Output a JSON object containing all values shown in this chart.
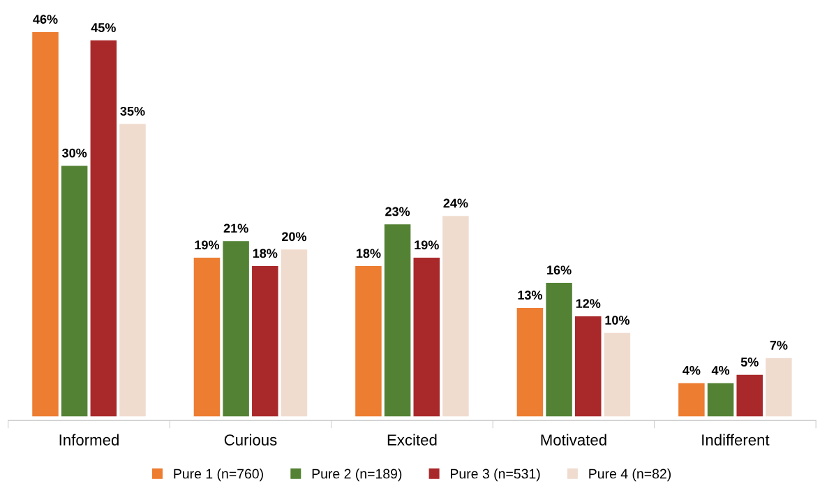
{
  "chart_data": {
    "type": "bar",
    "categories": [
      "Informed",
      "Curious",
      "Excited",
      "Motivated",
      "Indifferent"
    ],
    "series": [
      {
        "name": "Pure 1 (n=760)",
        "color": "#ed7d31",
        "values": [
          46,
          19,
          18,
          13,
          4
        ],
        "value_labels": [
          "46%",
          "19%",
          "18%",
          "13%",
          "4%"
        ]
      },
      {
        "name": "Pure 2 (n=189)",
        "color": "#548235",
        "values": [
          30,
          21,
          23,
          16,
          4
        ],
        "value_labels": [
          "30%",
          "21%",
          "23%",
          "16%",
          "4%"
        ]
      },
      {
        "name": "Pure 3 (n=531)",
        "color": "#a9292a",
        "values": [
          45,
          18,
          19,
          12,
          5
        ],
        "value_labels": [
          "45%",
          "18%",
          "19%",
          "12%",
          "5%"
        ]
      },
      {
        "name": "Pure 4 (n=82)",
        "color": "#f0dccf",
        "values": [
          35,
          20,
          24,
          10,
          7
        ],
        "value_labels": [
          "35%",
          "20%",
          "24%",
          "10%",
          "7%"
        ]
      }
    ],
    "legend": "bottom",
    "grid": false
  }
}
